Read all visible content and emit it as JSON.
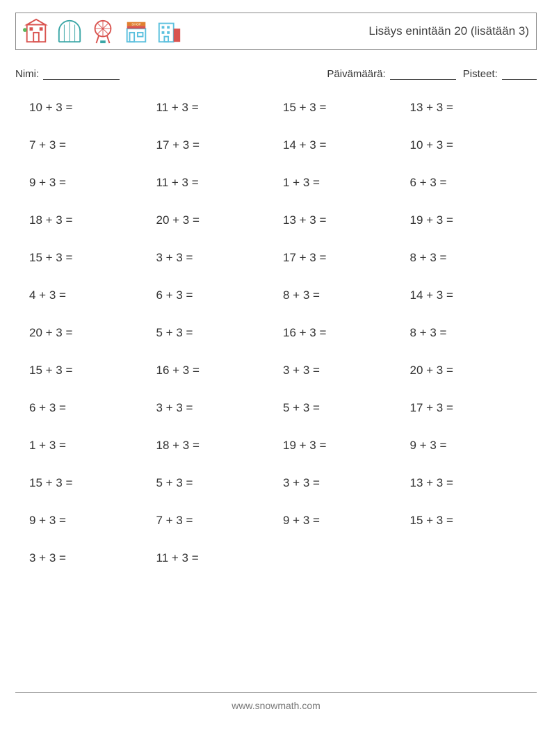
{
  "header": {
    "title": "Lisäys enintään 20 (lisätään 3)",
    "icon_colors": {
      "red": "#d9534f",
      "green": "#5cb85c",
      "blue": "#5bc0de",
      "teal": "#3aa6a6",
      "gray": "#888",
      "orange": "#e08030"
    }
  },
  "info": {
    "name_label": "Nimi:",
    "date_label": "Päivämäärä:",
    "score_label": "Pisteet:"
  },
  "grid": {
    "columns": 4,
    "font_size": 17,
    "row_gap": 34,
    "problems": [
      "10 + 3 =",
      "11 + 3 =",
      "15 + 3 =",
      "13 + 3 =",
      "7 + 3 =",
      "17 + 3 =",
      "14 + 3 =",
      "10 + 3 =",
      "9 + 3 =",
      "11 + 3 =",
      "1 + 3 =",
      "6 + 3 =",
      "18 + 3 =",
      "20 + 3 =",
      "13 + 3 =",
      "19 + 3 =",
      "15 + 3 =",
      "3 + 3 =",
      "17 + 3 =",
      "8 + 3 =",
      "4 + 3 =",
      "6 + 3 =",
      "8 + 3 =",
      "14 + 3 =",
      "20 + 3 =",
      "5 + 3 =",
      "16 + 3 =",
      "8 + 3 =",
      "15 + 3 =",
      "16 + 3 =",
      "3 + 3 =",
      "20 + 3 =",
      "6 + 3 =",
      "3 + 3 =",
      "5 + 3 =",
      "17 + 3 =",
      "1 + 3 =",
      "18 + 3 =",
      "19 + 3 =",
      "9 + 3 =",
      "15 + 3 =",
      "5 + 3 =",
      "3 + 3 =",
      "13 + 3 =",
      "9 + 3 =",
      "7 + 3 =",
      "9 + 3 =",
      "15 + 3 =",
      "3 + 3 =",
      "11 + 3 ="
    ]
  },
  "footer": {
    "text": "www.snowmath.com"
  }
}
